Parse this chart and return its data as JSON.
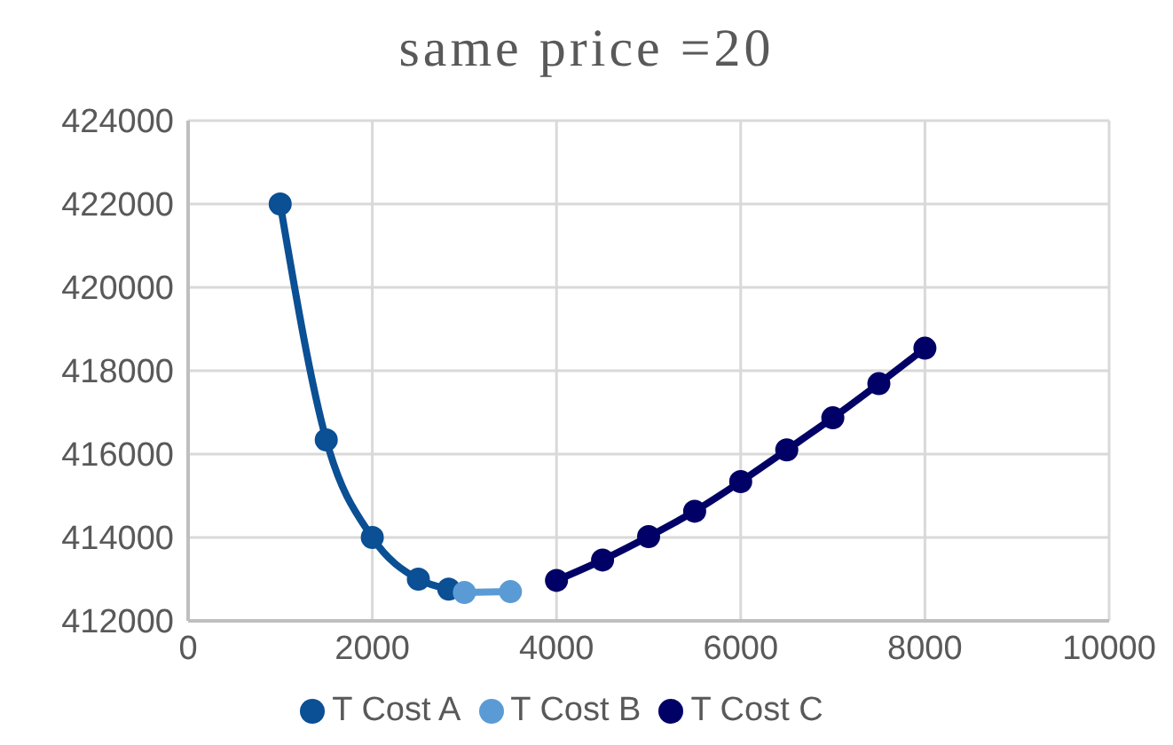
{
  "chart_data": {
    "type": "line",
    "title": "same price =20",
    "xlim": [
      0,
      10000
    ],
    "xticks": [
      0,
      2000,
      4000,
      6000,
      8000,
      10000
    ],
    "ylim": [
      412000,
      424000
    ],
    "yticks": [
      412000,
      414000,
      416000,
      418000,
      420000,
      422000,
      424000
    ],
    "grid": true,
    "legend": "bottom",
    "marker": "circle",
    "series": [
      {
        "name": "T Cost A",
        "color": "#0b4f94",
        "x": [
          1000,
          1500,
          2000,
          2500,
          2830
        ],
        "values": [
          422000,
          416340,
          414000,
          413000,
          412760
        ]
      },
      {
        "name": "T Cost B",
        "color": "#5b9bd5",
        "x": [
          3000,
          3500
        ],
        "values": [
          412680,
          412700
        ]
      },
      {
        "name": "T Cost C",
        "color": "#000066",
        "x": [
          4000,
          4500,
          5000,
          5500,
          6000,
          6500,
          7000,
          7500,
          8000
        ],
        "values": [
          412970,
          413460,
          414020,
          414630,
          415340,
          416100,
          416870,
          417690,
          418540
        ]
      }
    ]
  }
}
